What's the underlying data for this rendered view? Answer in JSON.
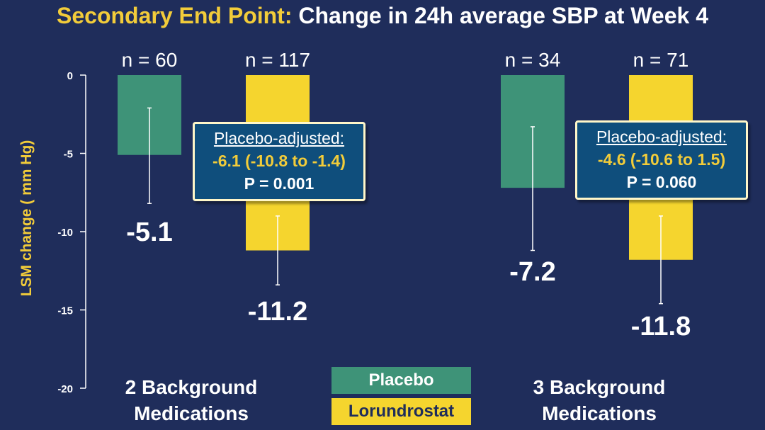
{
  "title": {
    "lead": "Secondary End Point:",
    "rest": "Change in 24h average SBP at Week 4"
  },
  "colors": {
    "background": "#1f2d5b",
    "placebo": "#3e9378",
    "lorundrostat": "#f5d52e",
    "accent": "#f2cc3a",
    "callout": "#0f4e7c"
  },
  "chart_data": {
    "type": "bar",
    "title": "Change in 24h average SBP at Week 4",
    "ylabel": "LSM change ( mm Hg)",
    "ylim": [
      -20,
      0
    ],
    "yticks": [
      0,
      -5,
      -10,
      -15,
      -20
    ],
    "categories": [
      "2 Background Medications",
      "3 Background Medications"
    ],
    "category_lines": [
      [
        "2 Background",
        "Medications"
      ],
      [
        "3 Background",
        "Medications"
      ]
    ],
    "series": [
      {
        "name": "Placebo",
        "values": [
          -5.1,
          -7.2
        ],
        "n": [
          "n = 60",
          "n = 34"
        ],
        "value_labels": [
          "-5.1",
          "-7.2"
        ],
        "ci": [
          [
            -8.2,
            -2.1
          ],
          [
            -11.2,
            -3.3
          ]
        ]
      },
      {
        "name": "Lorundrostat",
        "values": [
          -11.2,
          -11.8
        ],
        "n": [
          "n = 117",
          "n = 71"
        ],
        "value_labels": [
          "-11.2",
          "-11.8"
        ],
        "ci": [
          [
            -13.4,
            -9.0
          ],
          [
            -14.6,
            -9.0
          ]
        ]
      }
    ],
    "annotations": [
      {
        "heading": "Placebo-adjusted:",
        "difference": "-6.1 (-10.8 to -1.4)",
        "p_value": "P = 0.001"
      },
      {
        "heading": "Placebo-adjusted:",
        "difference": "-4.6 (-10.6 to 1.5)",
        "p_value": "P = 0.060"
      }
    ]
  },
  "legend": {
    "placebo": "Placebo",
    "lorundrostat": "Lorundrostat"
  }
}
